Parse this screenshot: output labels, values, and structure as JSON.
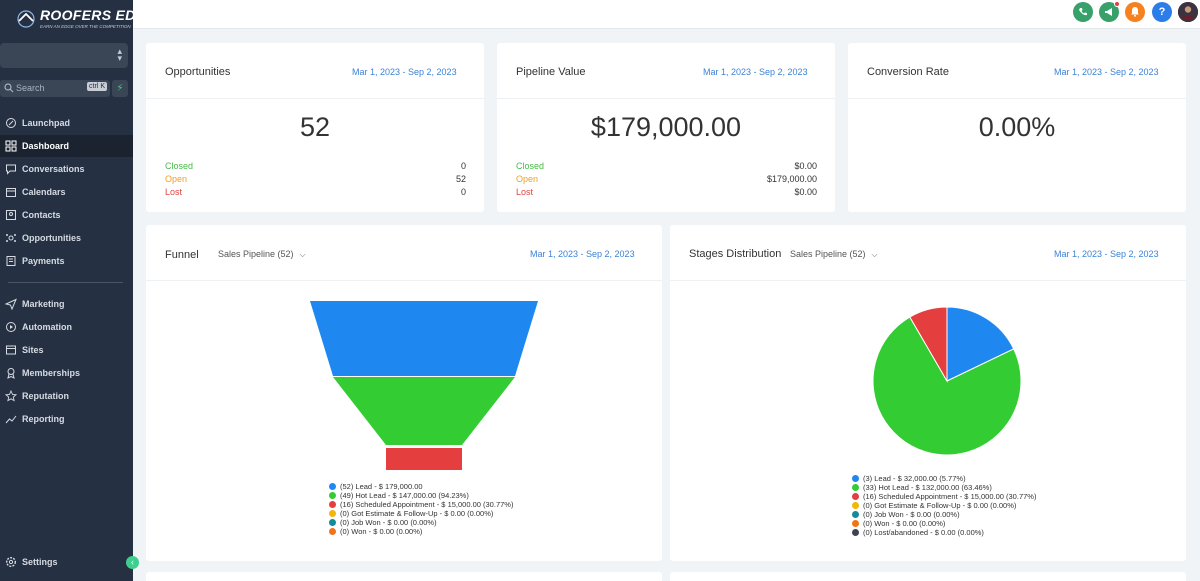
{
  "app": {
    "logo_text": "ROOFERS EDGE",
    "logo_tagline": "EARN AN EDGE OVER THE COMPETITION"
  },
  "sidebar": {
    "search_placeholder": "Search",
    "search_shortcut": "ctrl K",
    "items": [
      {
        "label": "Launchpad",
        "icon": "rocket-icon"
      },
      {
        "label": "Dashboard",
        "icon": "grid-icon",
        "active": true
      },
      {
        "label": "Conversations",
        "icon": "chat-icon"
      },
      {
        "label": "Calendars",
        "icon": "calendar-icon"
      },
      {
        "label": "Contacts",
        "icon": "contacts-icon"
      },
      {
        "label": "Opportunities",
        "icon": "opportunities-icon"
      },
      {
        "label": "Payments",
        "icon": "payments-icon"
      }
    ],
    "items2": [
      {
        "label": "Marketing",
        "icon": "send-icon"
      },
      {
        "label": "Automation",
        "icon": "automation-icon"
      },
      {
        "label": "Sites",
        "icon": "sites-icon"
      },
      {
        "label": "Memberships",
        "icon": "memberships-icon"
      },
      {
        "label": "Reputation",
        "icon": "star-icon"
      },
      {
        "label": "Reporting",
        "icon": "chart-line-icon"
      }
    ],
    "settings_label": "Settings"
  },
  "topbar": {
    "icons": [
      "phone-icon",
      "megaphone-icon",
      "bell-icon",
      "help-icon",
      "avatar"
    ],
    "colors": {
      "phone": "#38a169",
      "megaphone": "#38a169",
      "bell": "#f6821f",
      "help": "#2b7de9"
    }
  },
  "cards": {
    "opportunities": {
      "title": "Opportunities",
      "date_range": "Mar 1, 2023 - Sep 2, 2023",
      "value": "52",
      "rows": [
        {
          "label": "Closed",
          "value": "0"
        },
        {
          "label": "Open",
          "value": "52"
        },
        {
          "label": "Lost",
          "value": "0"
        }
      ]
    },
    "pipeline_value": {
      "title": "Pipeline Value",
      "date_range": "Mar 1, 2023 - Sep 2, 2023",
      "value": "$179,000.00",
      "rows": [
        {
          "label": "Closed",
          "value": "$0.00"
        },
        {
          "label": "Open",
          "value": "$179,000.00"
        },
        {
          "label": "Lost",
          "value": "$0.00"
        }
      ]
    },
    "conversion_rate": {
      "title": "Conversion Rate",
      "date_range": "Mar 1, 2023 - Sep 2, 2023",
      "value": "0.00%"
    },
    "funnel": {
      "title": "Funnel",
      "pipeline": "Sales Pipeline (52)",
      "date_range": "Mar 1, 2023 - Sep 2, 2023"
    },
    "stages": {
      "title": "Stages Distribution",
      "pipeline": "Sales Pipeline (52)",
      "date_range": "Mar 1, 2023 - Sep 2, 2023"
    }
  },
  "chart_data": [
    {
      "type": "funnel",
      "categories": [
        "Lead",
        "Hot Lead",
        "Scheduled Appointment",
        "Got Estimate & Follow-Up",
        "Job Won",
        "Won"
      ],
      "counts": [
        52,
        49,
        16,
        0,
        0,
        0
      ],
      "values": [
        179000,
        147000,
        15000,
        0,
        0,
        0
      ],
      "colors": [
        "#1e88f0",
        "#33cc33",
        "#e53e3e",
        "#f2b705",
        "#14899b",
        "#f07418"
      ],
      "legend": [
        "(52) Lead - $ 179,000.00",
        "(49) Hot Lead - $ 147,000.00 (94.23%)",
        "(16) Scheduled Appointment - $ 15,000.00 (30.77%)",
        "(0) Got Estimate & Follow-Up - $ 0.00 (0.00%)",
        "(0) Job Won - $ 0.00 (0.00%)",
        "(0) Won - $ 0.00 (0.00%)"
      ]
    },
    {
      "type": "pie",
      "categories": [
        "Lead",
        "Hot Lead",
        "Scheduled Appointment",
        "Got Estimate & Follow-Up",
        "Job Won",
        "Won",
        "Lost/abandoned"
      ],
      "counts": [
        3,
        33,
        16,
        0,
        0,
        0,
        0
      ],
      "values": [
        32000,
        132000,
        15000,
        0,
        0,
        0,
        0
      ],
      "percents": [
        5.77,
        63.46,
        30.77,
        0,
        0,
        0,
        0
      ],
      "colors": [
        "#1e88f0",
        "#33cc33",
        "#e53e3e",
        "#f2b705",
        "#14899b",
        "#f07418",
        "#3d4450"
      ],
      "legend": [
        "(3) Lead - $ 32,000.00 (5.77%)",
        "(33) Hot Lead - $ 132,000.00 (63.46%)",
        "(16) Scheduled Appointment - $ 15,000.00 (30.77%)",
        "(0) Got Estimate & Follow-Up - $ 0.00 (0.00%)",
        "(0) Job Won - $ 0.00 (0.00%)",
        "(0) Won - $ 0.00 (0.00%)",
        "(0) Lost/abandoned - $ 0.00 (0.00%)"
      ]
    }
  ]
}
